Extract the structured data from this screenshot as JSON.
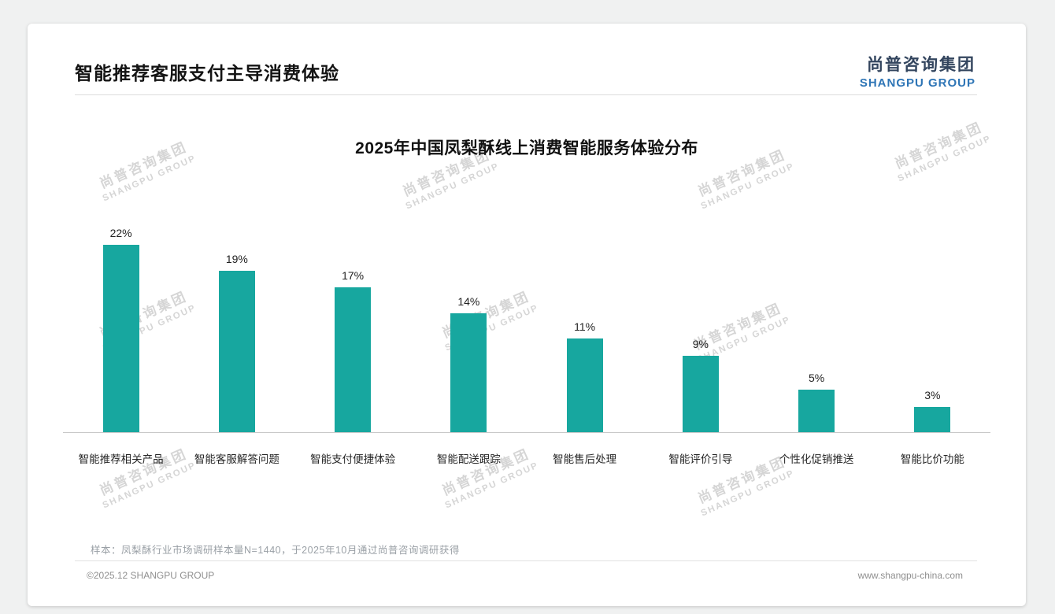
{
  "header": {
    "title": "智能推荐客服支付主导消费体验"
  },
  "logo": {
    "cn": "尚普咨询集团",
    "en": "SHANGPU GROUP"
  },
  "watermark": {
    "cn": "尚普咨询集团",
    "en": "SHANGPU GROUP"
  },
  "chart_data": {
    "type": "bar",
    "title": "2025年中国凤梨酥线上消费智能服务体验分布",
    "categories": [
      "智能推荐相关产品",
      "智能客服解答问题",
      "智能支付便捷体验",
      "智能配送跟踪",
      "智能售后处理",
      "智能评价引导",
      "个性化促销推送",
      "智能比价功能"
    ],
    "values": [
      22,
      19,
      17,
      14,
      11,
      9,
      5,
      3
    ],
    "value_labels": [
      "22%",
      "19%",
      "17%",
      "14%",
      "11%",
      "9%",
      "5%",
      "3%"
    ],
    "unit": "%",
    "ylim": [
      0,
      25
    ],
    "grid": false,
    "legend": "none",
    "bar_color": "#17A79F"
  },
  "footnote": "样本：凤梨酥行业市场调研样本量N=1440，于2025年10月通过尚普咨询调研获得",
  "footer": {
    "left": "©2025.12 SHANGPU GROUP",
    "right": "www.shangpu-china.com"
  }
}
